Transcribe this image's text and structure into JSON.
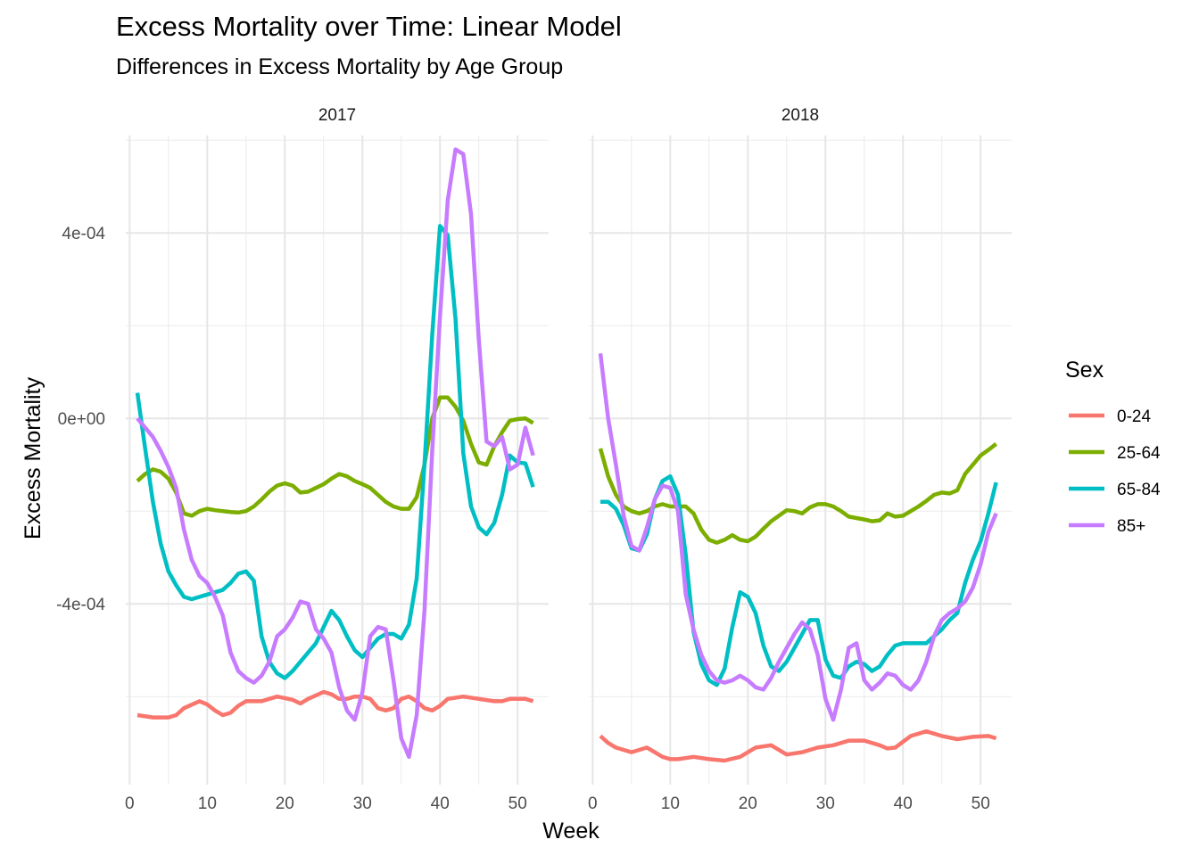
{
  "chart_data": {
    "type": "line",
    "title": "Excess Mortality over Time: Linear Model",
    "subtitle": "Differences in Excess Mortality by Age Group",
    "xlabel": "Week",
    "ylabel": "Excess Mortality",
    "legend_title": "Sex",
    "legend_position": "right",
    "grid": true,
    "xlim": [
      -0.5,
      54
    ],
    "ylim": [
      -0.00079,
      0.00061
    ],
    "x_ticks": [
      0,
      10,
      20,
      30,
      40,
      50
    ],
    "x_tick_labels": [
      "0",
      "10",
      "20",
      "30",
      "40",
      "50"
    ],
    "y_ticks": [
      -0.0004,
      0,
      0.0004
    ],
    "y_tick_labels": [
      "-4e-04",
      "0e+00",
      "4e-04"
    ],
    "series_meta": [
      {
        "name": "0-24",
        "color": "#F8766D"
      },
      {
        "name": "25-64",
        "color": "#7CAE00"
      },
      {
        "name": "65-84",
        "color": "#00BFC4"
      },
      {
        "name": "85+",
        "color": "#C77CFF"
      }
    ],
    "panels": [
      {
        "label": "2017",
        "series": [
          {
            "name": "0-24",
            "x": [
              1,
              3,
              5,
              6,
              7,
              9,
              10,
              11,
              12,
              13,
              14,
              15,
              17,
              19,
              21,
              22,
              23,
              25,
              26,
              27,
              28,
              29,
              30,
              31,
              32,
              33,
              34,
              35,
              36,
              37,
              38,
              39,
              40,
              41,
              43,
              45,
              47,
              48,
              49,
              51,
              52
            ],
            "y": [
              -0.00064,
              -0.000645,
              -0.000645,
              -0.00064,
              -0.000625,
              -0.00061,
              -0.000617,
              -0.00063,
              -0.00064,
              -0.000635,
              -0.00062,
              -0.00061,
              -0.00061,
              -0.0006,
              -0.000607,
              -0.000615,
              -0.000605,
              -0.00059,
              -0.000595,
              -0.000605,
              -0.000605,
              -0.0006,
              -0.0006,
              -0.000605,
              -0.000625,
              -0.00063,
              -0.000625,
              -0.000605,
              -0.0006,
              -0.00061,
              -0.000625,
              -0.00063,
              -0.00062,
              -0.000605,
              -0.0006,
              -0.000605,
              -0.00061,
              -0.00061,
              -0.000605,
              -0.000605,
              -0.00061
            ]
          },
          {
            "name": "25-64",
            "x": [
              1,
              2,
              3,
              4,
              5,
              6,
              7,
              8,
              9,
              10,
              11,
              12,
              13,
              14,
              15,
              16,
              17,
              18,
              19,
              20,
              21,
              22,
              23,
              24,
              25,
              26,
              27,
              28,
              29,
              30,
              31,
              32,
              33,
              34,
              35,
              36,
              37,
              38,
              39,
              40,
              41,
              42,
              43,
              44,
              45,
              46,
              47,
              48,
              49,
              50,
              51,
              52
            ],
            "y": [
              -0.000135,
              -0.00012,
              -0.00011,
              -0.000115,
              -0.00013,
              -0.00016,
              -0.000205,
              -0.00021,
              -0.0002,
              -0.000195,
              -0.000198,
              -0.0002,
              -0.000202,
              -0.000203,
              -0.0002,
              -0.00019,
              -0.000175,
              -0.000158,
              -0.000145,
              -0.00014,
              -0.000145,
              -0.00016,
              -0.000158,
              -0.00015,
              -0.000142,
              -0.00013,
              -0.00012,
              -0.000125,
              -0.000135,
              -0.000142,
              -0.00015,
              -0.000165,
              -0.00018,
              -0.00019,
              -0.000195,
              -0.000195,
              -0.00017,
              -0.0001,
              0.0,
              4.5e-05,
              4.5e-05,
              2.5e-05,
              -5e-06,
              -5.5e-05,
              -9.5e-05,
              -0.0001,
              -6e-05,
              -3e-05,
              -5e-06,
              -1.5e-06,
              0.0,
              -1e-05
            ]
          },
          {
            "name": "65-84",
            "x": [
              1,
              2,
              3,
              4,
              5,
              6,
              7,
              8,
              9,
              10,
              11,
              12,
              13,
              14,
              15,
              16,
              17,
              18,
              19,
              20,
              21,
              22,
              23,
              24,
              25,
              26,
              27,
              28,
              29,
              30,
              31,
              32,
              33,
              34,
              35,
              36,
              37,
              38,
              39,
              40,
              41,
              42,
              43,
              44,
              45,
              46,
              47,
              48,
              49,
              50,
              51,
              52
            ],
            "y": [
              5.5e-05,
              -6.5e-05,
              -0.00018,
              -0.00027,
              -0.00033,
              -0.00036,
              -0.000385,
              -0.00039,
              -0.000385,
              -0.00038,
              -0.000375,
              -0.00037,
              -0.000355,
              -0.000335,
              -0.00033,
              -0.00035,
              -0.00047,
              -0.000525,
              -0.00055,
              -0.00056,
              -0.000545,
              -0.000525,
              -0.000505,
              -0.000485,
              -0.00045,
              -0.000415,
              -0.000435,
              -0.00047,
              -0.0005,
              -0.000515,
              -0.000495,
              -0.000475,
              -0.000465,
              -0.000465,
              -0.000475,
              -0.000445,
              -0.000345,
              -0.0001,
              0.00018,
              0.000415,
              0.000395,
              0.000215,
              -7.5e-05,
              -0.00019,
              -0.000235,
              -0.00025,
              -0.000225,
              -0.000165,
              -8e-05,
              -9.5e-05,
              -9.7e-05,
              -0.000148
            ]
          },
          {
            "name": "85+",
            "x": [
              1,
              2,
              3,
              4,
              5,
              6,
              7,
              8,
              9,
              10,
              11,
              12,
              13,
              14,
              15,
              16,
              17,
              18,
              19,
              20,
              21,
              22,
              23,
              24,
              25,
              26,
              27,
              28,
              29,
              30,
              31,
              32,
              33,
              34,
              35,
              36,
              37,
              38,
              39,
              40,
              41,
              42,
              43,
              44,
              45,
              46,
              47,
              48,
              49,
              50,
              51,
              52
            ],
            "y": [
              0.0,
              -2e-05,
              -4e-05,
              -7e-05,
              -0.000105,
              -0.00015,
              -0.00024,
              -0.000305,
              -0.00034,
              -0.000355,
              -0.000385,
              -0.000425,
              -0.000505,
              -0.000545,
              -0.00056,
              -0.00057,
              -0.000555,
              -0.000525,
              -0.00047,
              -0.000455,
              -0.00043,
              -0.000395,
              -0.0004,
              -0.000455,
              -0.000475,
              -0.000505,
              -0.00058,
              -0.00063,
              -0.00065,
              -0.00059,
              -0.00047,
              -0.00045,
              -0.000455,
              -0.000565,
              -0.00069,
              -0.00073,
              -0.00064,
              -0.000415,
              -7e-05,
              0.00022,
              0.00047,
              0.00058,
              0.00057,
              0.00044,
              0.00017,
              -5e-05,
              -6e-05,
              -4e-05,
              -0.00011,
              -0.0001,
              -2e-05,
              -8e-05
            ]
          }
        ]
      },
      {
        "label": "2018",
        "series": [
          {
            "name": "0-24",
            "x": [
              1,
              2,
              3,
              4,
              5,
              7,
              8,
              9,
              10,
              11,
              13,
              15,
              17,
              19,
              21,
              23,
              25,
              27,
              29,
              31,
              33,
              35,
              37,
              38,
              39,
              41,
              43,
              45,
              47,
              49,
              51,
              52
            ],
            "y": [
              -0.000685,
              -0.0007,
              -0.00071,
              -0.000715,
              -0.00072,
              -0.00071,
              -0.00072,
              -0.00073,
              -0.000735,
              -0.000735,
              -0.00073,
              -0.000735,
              -0.000738,
              -0.00073,
              -0.00071,
              -0.000705,
              -0.000725,
              -0.00072,
              -0.00071,
              -0.000705,
              -0.000695,
              -0.000695,
              -0.000705,
              -0.000712,
              -0.00071,
              -0.000685,
              -0.000675,
              -0.000685,
              -0.000692,
              -0.000687,
              -0.000685,
              -0.00069
            ]
          },
          {
            "name": "25-64",
            "x": [
              1,
              2,
              3,
              4,
              5,
              6,
              7,
              8,
              9,
              10,
              11,
              12,
              13,
              14,
              15,
              16,
              17,
              18,
              19,
              20,
              21,
              22,
              23,
              24,
              25,
              26,
              27,
              28,
              29,
              30,
              31,
              32,
              33,
              34,
              35,
              36,
              37,
              38,
              39,
              40,
              41,
              42,
              43,
              44,
              45,
              46,
              47,
              48,
              49,
              50,
              51,
              52
            ],
            "y": [
              -6.5e-05,
              -0.000125,
              -0.000165,
              -0.00019,
              -0.0002,
              -0.000205,
              -0.0002,
              -0.00019,
              -0.000185,
              -0.00019,
              -0.00019,
              -0.00019,
              -0.000205,
              -0.00024,
              -0.000262,
              -0.000268,
              -0.000262,
              -0.000252,
              -0.000262,
              -0.000265,
              -0.000255,
              -0.000238,
              -0.000222,
              -0.00021,
              -0.000198,
              -0.0002,
              -0.000205,
              -0.000192,
              -0.000185,
              -0.000185,
              -0.00019,
              -0.0002,
              -0.000212,
              -0.000215,
              -0.000218,
              -0.000222,
              -0.00022,
              -0.000205,
              -0.000212,
              -0.00021,
              -0.0002,
              -0.00019,
              -0.000178,
              -0.000165,
              -0.00016,
              -0.000162,
              -0.000155,
              -0.00012,
              -0.0001,
              -8e-05,
              -6.8e-05,
              -5.5e-05
            ]
          },
          {
            "name": "65-84",
            "x": [
              1,
              2,
              3,
              4,
              5,
              6,
              7,
              8,
              9,
              10,
              11,
              12,
              13,
              14,
              15,
              16,
              17,
              18,
              19,
              20,
              21,
              22,
              23,
              24,
              25,
              26,
              27,
              28,
              29,
              30,
              31,
              32,
              33,
              34,
              35,
              36,
              37,
              38,
              39,
              40,
              41,
              42,
              43,
              44,
              45,
              46,
              47,
              48,
              49,
              50,
              51,
              52
            ],
            "y": [
              -0.00018,
              -0.00018,
              -0.000195,
              -0.00023,
              -0.00028,
              -0.000285,
              -0.00025,
              -0.000175,
              -0.000135,
              -0.000125,
              -0.000165,
              -0.000295,
              -0.00046,
              -0.00053,
              -0.000565,
              -0.000575,
              -0.00054,
              -0.00045,
              -0.000375,
              -0.000385,
              -0.00042,
              -0.00049,
              -0.000535,
              -0.000545,
              -0.000525,
              -0.000495,
              -0.000465,
              -0.000435,
              -0.000435,
              -0.00052,
              -0.000555,
              -0.00056,
              -0.000535,
              -0.000525,
              -0.00053,
              -0.000545,
              -0.000535,
              -0.00051,
              -0.00049,
              -0.000485,
              -0.000485,
              -0.000485,
              -0.000485,
              -0.00047,
              -0.000455,
              -0.000435,
              -0.00042,
              -0.000355,
              -0.000305,
              -0.000265,
              -0.000205,
              -0.000138
            ]
          },
          {
            "name": "85+",
            "x": [
              1,
              2,
              3,
              4,
              5,
              6,
              7,
              8,
              9,
              10,
              11,
              12,
              13,
              14,
              15,
              16,
              17,
              18,
              19,
              20,
              21,
              22,
              23,
              24,
              25,
              26,
              27,
              28,
              29,
              30,
              31,
              32,
              33,
              34,
              35,
              36,
              37,
              38,
              39,
              40,
              41,
              42,
              43,
              44,
              45,
              46,
              47,
              48,
              49,
              50,
              51,
              52
            ],
            "y": [
              0.00014,
              0.0,
              -0.0001,
              -0.00021,
              -0.000275,
              -0.000285,
              -0.000235,
              -0.000175,
              -0.000145,
              -0.00015,
              -0.0002,
              -0.00038,
              -0.000455,
              -0.00051,
              -0.000545,
              -0.000565,
              -0.00057,
              -0.000565,
              -0.000555,
              -0.000565,
              -0.00058,
              -0.000585,
              -0.00056,
              -0.000525,
              -0.000495,
              -0.000465,
              -0.00044,
              -0.000455,
              -0.00051,
              -0.000605,
              -0.00065,
              -0.000585,
              -0.000495,
              -0.000485,
              -0.000565,
              -0.000585,
              -0.00057,
              -0.00055,
              -0.000555,
              -0.000575,
              -0.000585,
              -0.000565,
              -0.000525,
              -0.00047,
              -0.000435,
              -0.00042,
              -0.00041,
              -0.000395,
              -0.000365,
              -0.000315,
              -0.000245,
              -0.000205
            ]
          }
        ]
      }
    ]
  }
}
